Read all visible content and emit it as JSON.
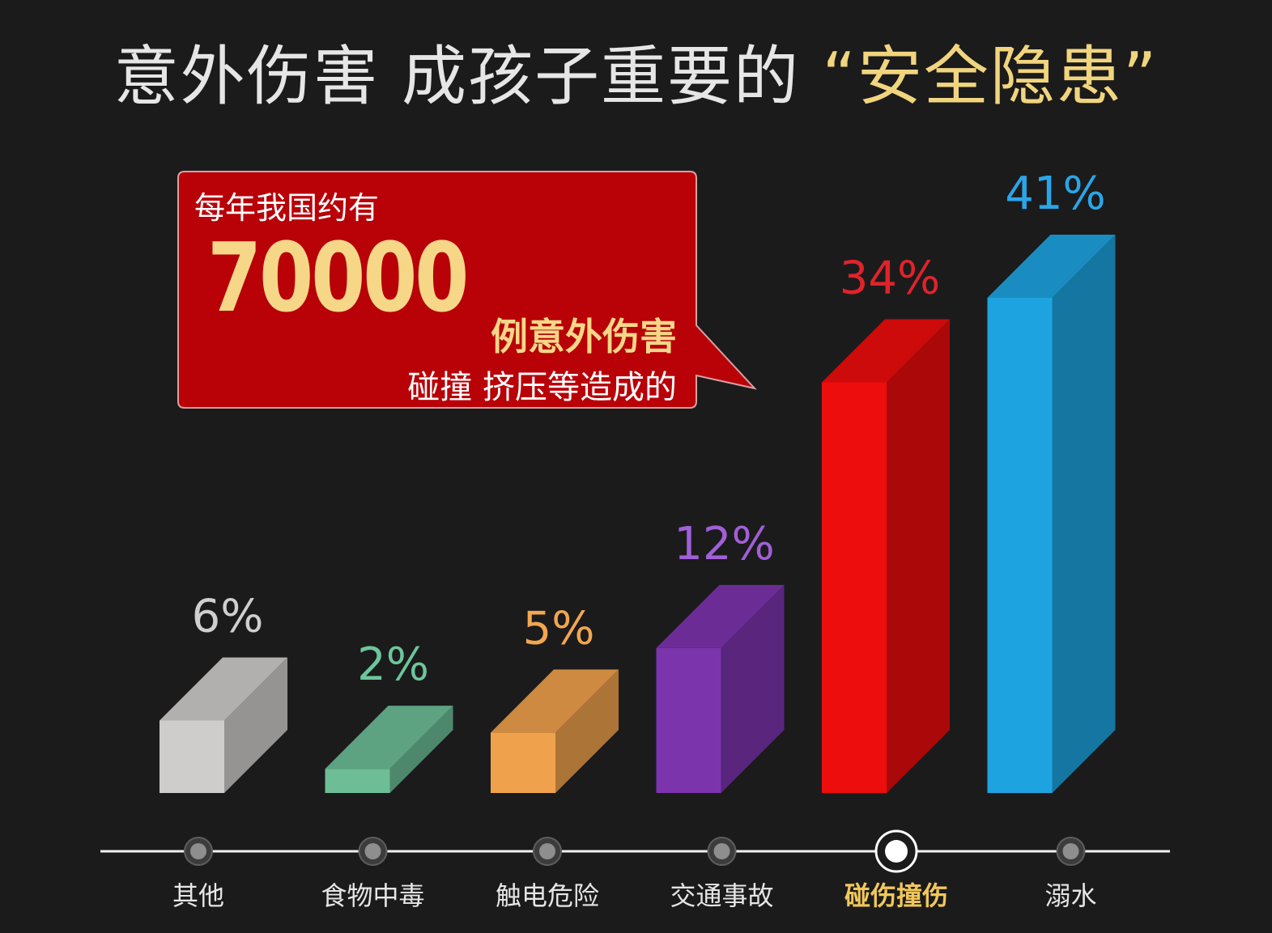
{
  "title": {
    "main": "意外伤害 成孩子重要的",
    "highlight": "“安全隐患”"
  },
  "callout": {
    "line1": "每年我国约有",
    "number": "70000",
    "line3": "例意外伤害",
    "line4": "碰撞 挤压等造成的"
  },
  "chart_data": {
    "type": "bar",
    "categories": [
      "其他",
      "食物中毒",
      "触电危险",
      "交通事故",
      "碰伤撞伤",
      "溺水"
    ],
    "values": [
      6,
      2,
      5,
      12,
      34,
      41
    ],
    "value_labels": [
      "6%",
      "2%",
      "5%",
      "12%",
      "34%",
      "41%"
    ],
    "unit": "%",
    "title": "意外伤害 成孩子重要的 “安全隐患”",
    "xlabel": "",
    "ylabel": "",
    "grid": false,
    "legend": "none",
    "selected_category": "碰伤撞伤",
    "colors": [
      "#cfcdcb",
      "#6dbd96",
      "#f0a14c",
      "#7c34ad",
      "#ee0d0d",
      "#1da4e0"
    ],
    "label_colors": [
      "#cfcfcf",
      "#6cc69c",
      "#f3a64f",
      "#a15fd8",
      "#e0232b",
      "#2aa6e8"
    ]
  }
}
